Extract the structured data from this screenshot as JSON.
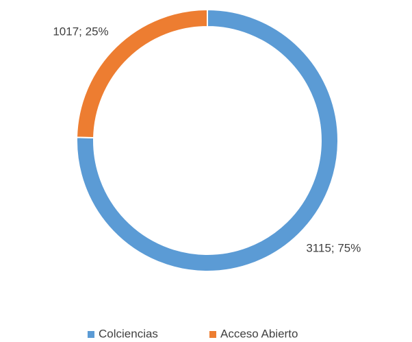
{
  "chart_data": {
    "type": "donut",
    "categories": [
      "Colciencias",
      "Acceso Abierto"
    ],
    "values": [
      3115,
      1017
    ],
    "value_labels": [
      "3115; 75%",
      "1017; 25%"
    ],
    "colors": [
      "#5b9bd5",
      "#ed7d31"
    ],
    "legend": "bottom"
  }
}
